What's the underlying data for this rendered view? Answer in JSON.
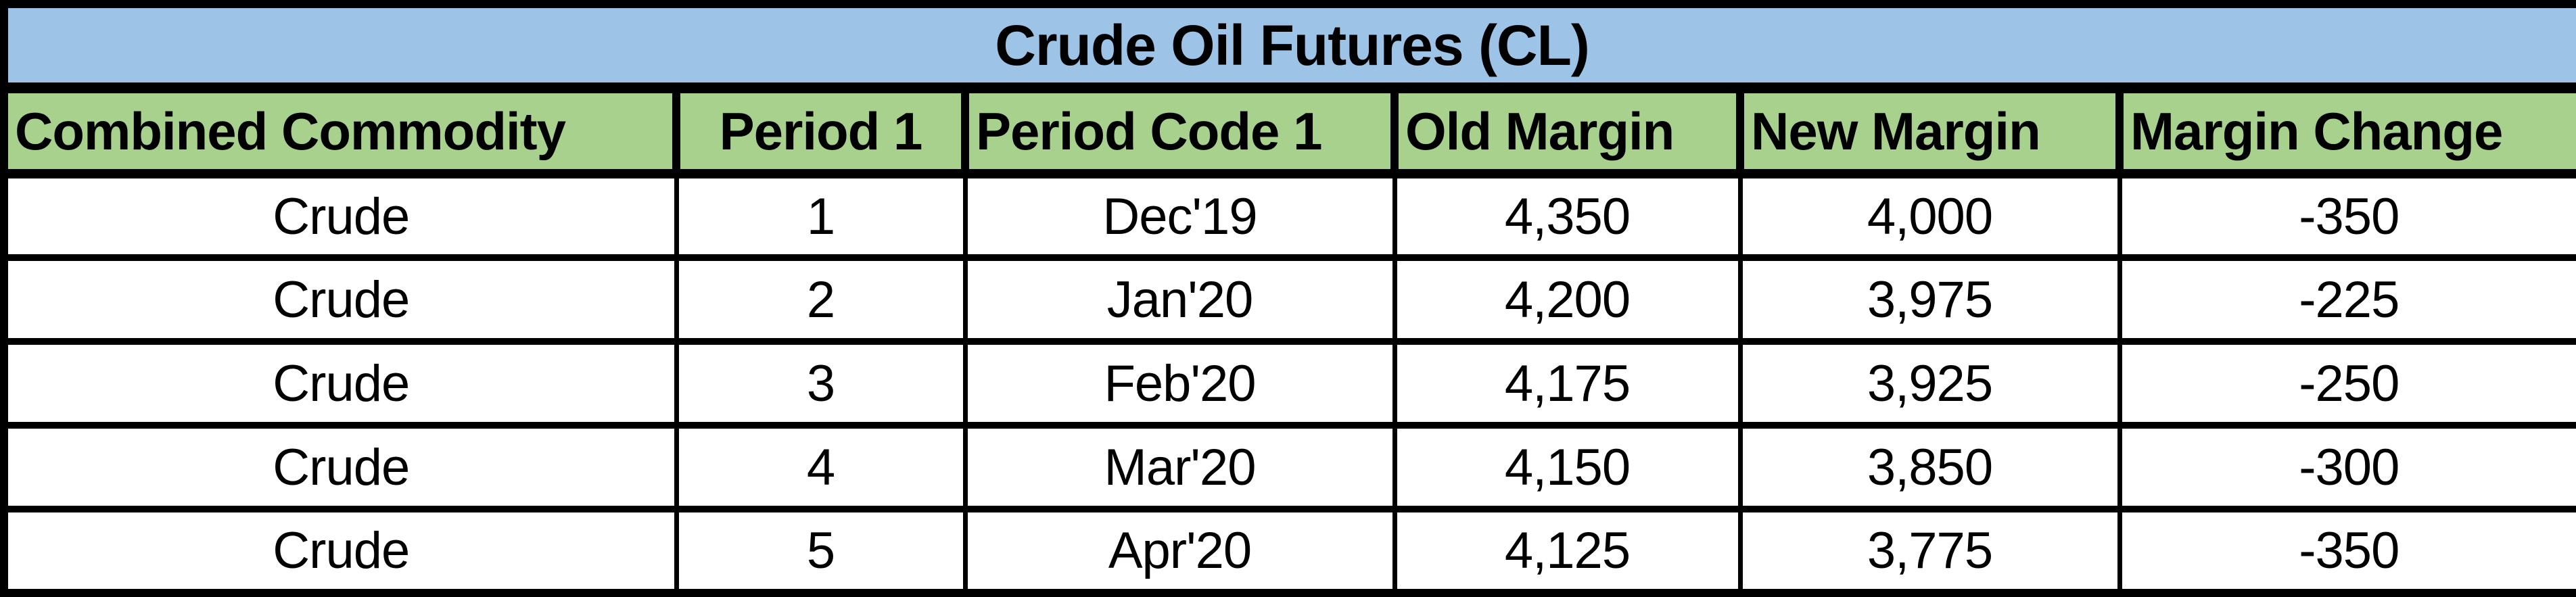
{
  "table": {
    "title": "Crude Oil Futures (CL)",
    "columns": [
      {
        "label": "Combined Commodity",
        "align": "left"
      },
      {
        "label": "Period 1",
        "align": "center"
      },
      {
        "label": "Period Code 1",
        "align": "left"
      },
      {
        "label": "Old Margin",
        "align": "left"
      },
      {
        "label": "New Margin",
        "align": "left"
      },
      {
        "label": "Margin Change",
        "align": "left"
      }
    ],
    "rows": [
      [
        "Crude",
        "1",
        "Dec'19",
        "4,350",
        "4,000",
        "-350"
      ],
      [
        "Crude",
        "2",
        "Jan'20",
        "4,200",
        "3,975",
        "-225"
      ],
      [
        "Crude",
        "3",
        "Feb'20",
        "4,175",
        "3,925",
        "-250"
      ],
      [
        "Crude",
        "4",
        "Mar'20",
        "4,150",
        "3,850",
        "-300"
      ],
      [
        "Crude",
        "5",
        "Apr'20",
        "4,125",
        "3,775",
        "-350"
      ]
    ],
    "colors": {
      "title_bg": "#9DC3E6",
      "header_bg": "#A9D18E",
      "row_bg": "#FFFFFF",
      "border": "#000000",
      "text": "#000000"
    }
  }
}
